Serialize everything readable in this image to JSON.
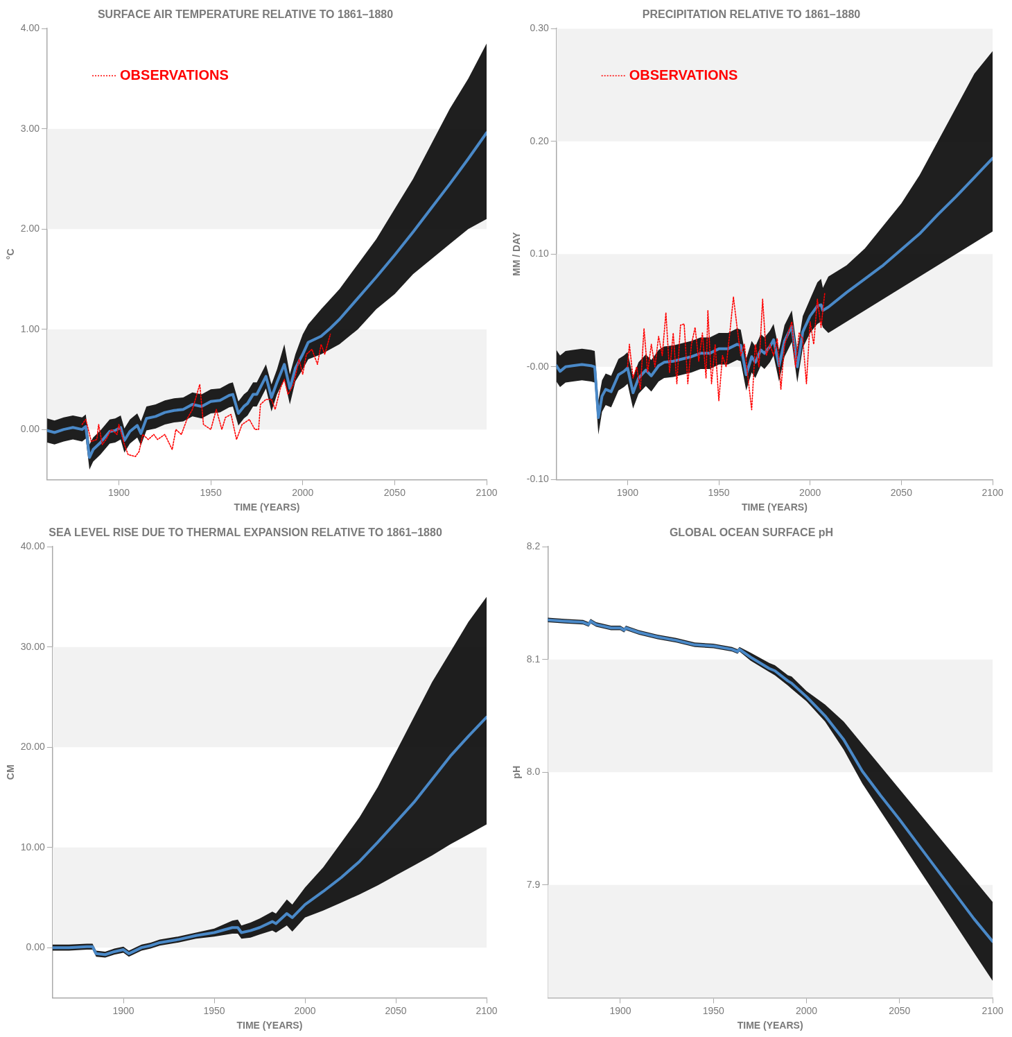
{
  "chart_data": [
    {
      "type": "line",
      "title": "SURFACE AIR TEMPERATURE RELATIVE TO 1861–1880",
      "xlabel": "TIME (YEARS)",
      "ylabel": "°C",
      "legend": "top left",
      "xlim": [
        1861,
        2100
      ],
      "xticks": [
        1900,
        1950,
        2000,
        2050,
        2100
      ],
      "ylim": [
        -0.5,
        4.0
      ],
      "yticks": [
        {
          "value": 0,
          "label": "0.00"
        },
        {
          "value": 1,
          "label": "1.00"
        },
        {
          "value": 2,
          "label": "2.00"
        },
        {
          "value": 3,
          "label": "3.00"
        },
        {
          "value": 4,
          "label": "4.00"
        }
      ],
      "bands": [
        {
          "axis": "y",
          "from": 0,
          "to": 1,
          "color": "#f2f2f2"
        },
        {
          "axis": "y",
          "from": 2,
          "to": 3,
          "color": "#f2f2f2"
        }
      ],
      "x": [
        1861,
        1865,
        1870,
        1875,
        1880,
        1882,
        1884,
        1886,
        1890,
        1895,
        1898,
        1901,
        1903,
        1906,
        1910,
        1912,
        1915,
        1920,
        1925,
        1930,
        1935,
        1940,
        1945,
        1950,
        1955,
        1960,
        1962,
        1965,
        1968,
        1970,
        1973,
        1975,
        1980,
        1983,
        1986,
        1990,
        1993,
        1996,
        2000,
        2003,
        2010,
        2015,
        2020,
        2030,
        2040,
        2050,
        2060,
        2070,
        2080,
        2090,
        2100
      ],
      "series": [
        {
          "color": "#4a89c8",
          "values": [
            -0.01,
            -0.03,
            0.0,
            0.02,
            0.0,
            0.03,
            -0.28,
            -0.2,
            -0.13,
            -0.02,
            -0.01,
            0.02,
            -0.11,
            -0.02,
            0.04,
            -0.04,
            0.11,
            0.13,
            0.17,
            0.19,
            0.2,
            0.25,
            0.23,
            0.28,
            0.29,
            0.34,
            0.35,
            0.16,
            0.23,
            0.26,
            0.35,
            0.35,
            0.53,
            0.32,
            0.47,
            0.65,
            0.41,
            0.61,
            0.75,
            0.87,
            0.93,
            1.01,
            1.1,
            1.31,
            1.52,
            1.74,
            1.97,
            2.21,
            2.45,
            2.7,
            2.96
          ],
          "lower": [
            -0.13,
            -0.15,
            -0.12,
            -0.1,
            -0.12,
            -0.09,
            -0.4,
            -0.32,
            -0.25,
            -0.14,
            -0.13,
            -0.1,
            -0.23,
            -0.14,
            -0.08,
            -0.16,
            -0.01,
            0.01,
            0.05,
            0.07,
            0.08,
            0.13,
            0.11,
            0.16,
            0.17,
            0.22,
            0.23,
            0.04,
            0.11,
            0.14,
            0.23,
            0.23,
            0.41,
            0.18,
            0.35,
            0.5,
            0.25,
            0.48,
            0.6,
            0.7,
            0.75,
            0.8,
            0.85,
            1.0,
            1.2,
            1.35,
            1.55,
            1.7,
            1.85,
            2.0,
            2.1
          ],
          "upper": [
            0.11,
            0.09,
            0.12,
            0.14,
            0.12,
            0.15,
            -0.15,
            -0.08,
            -0.01,
            0.1,
            0.11,
            0.14,
            0.01,
            0.1,
            0.16,
            0.08,
            0.23,
            0.25,
            0.29,
            0.31,
            0.32,
            0.37,
            0.35,
            0.4,
            0.41,
            0.46,
            0.47,
            0.28,
            0.35,
            0.38,
            0.47,
            0.47,
            0.65,
            0.45,
            0.6,
            0.85,
            0.55,
            0.75,
            0.95,
            1.05,
            1.2,
            1.3,
            1.4,
            1.65,
            1.9,
            2.2,
            2.5,
            2.85,
            3.2,
            3.5,
            3.85
          ]
        },
        {
          "name": "OBSERVATIONS",
          "color": "#ff0000",
          "line_style": "dotted",
          "x": [
            1880,
            1882,
            1885,
            1888,
            1889,
            1891,
            1893,
            1896,
            1899,
            1900,
            1903,
            1905,
            1909,
            1911,
            1913,
            1916,
            1919,
            1921,
            1925,
            1929,
            1931,
            1934,
            1937,
            1940,
            1944,
            1946,
            1950,
            1953,
            1956,
            1958,
            1961,
            1964,
            1967,
            1971,
            1974,
            1976,
            1977,
            1980,
            1983,
            1985,
            1988,
            1990,
            1992,
            1995,
            1998,
            2000,
            2002,
            2005,
            2008,
            2010,
            2012,
            2015
          ],
          "values": [
            0.05,
            0.1,
            -0.12,
            -0.1,
            0.05,
            -0.15,
            -0.1,
            0.0,
            -0.05,
            0.05,
            -0.15,
            -0.25,
            -0.27,
            -0.22,
            -0.05,
            -0.1,
            -0.05,
            -0.1,
            -0.05,
            -0.2,
            0.0,
            -0.05,
            0.1,
            0.2,
            0.45,
            0.05,
            0.0,
            0.2,
            0.0,
            0.12,
            0.15,
            -0.1,
            0.05,
            0.1,
            0.0,
            0.0,
            0.25,
            0.3,
            0.3,
            0.2,
            0.42,
            0.5,
            0.35,
            0.45,
            0.7,
            0.55,
            0.75,
            0.8,
            0.65,
            0.85,
            0.75,
            0.95
          ]
        }
      ]
    },
    {
      "type": "line",
      "title": "PRECIPITATION RELATIVE TO 1861–1880",
      "xlabel": "TIME (YEARS)",
      "ylabel": "MM / DAY",
      "legend": "top left",
      "xlim": [
        1861,
        2100
      ],
      "xticks": [
        1900,
        1950,
        2000,
        2050,
        2100
      ],
      "ylim": [
        -0.1,
        0.3
      ],
      "yticks": [
        {
          "value": -0.1,
          "label": "-0.10"
        },
        {
          "value": 0,
          "label": "-0.00"
        },
        {
          "value": 0.1,
          "label": "0.10"
        },
        {
          "value": 0.2,
          "label": "0.20"
        },
        {
          "value": 0.3,
          "label": "0.30"
        }
      ],
      "bands": [
        {
          "axis": "y",
          "from": 0,
          "to": 0.1,
          "color": "#f2f2f2"
        },
        {
          "axis": "y",
          "from": 0.2,
          "to": 0.3,
          "color": "#f2f2f2"
        }
      ],
      "x": [
        1861,
        1863,
        1866,
        1870,
        1875,
        1880,
        1882,
        1884,
        1886,
        1888,
        1891,
        1895,
        1898,
        1900,
        1903,
        1906,
        1910,
        1913,
        1917,
        1920,
        1925,
        1930,
        1935,
        1940,
        1945,
        1950,
        1955,
        1960,
        1962,
        1965,
        1968,
        1970,
        1973,
        1975,
        1978,
        1980,
        1983,
        1986,
        1990,
        1993,
        1996,
        2000,
        2004,
        2006,
        2007,
        2010,
        2020,
        2030,
        2040,
        2050,
        2060,
        2070,
        2080,
        2090,
        2100
      ],
      "series": [
        {
          "color": "#4a89c8",
          "values": [
            0.001,
            -0.004,
            0.0,
            0.001,
            0.002,
            0.001,
            0.0,
            -0.045,
            -0.026,
            -0.02,
            -0.022,
            -0.007,
            -0.004,
            -0.001,
            -0.023,
            -0.01,
            -0.003,
            -0.008,
            0.001,
            0.004,
            0.005,
            0.007,
            0.009,
            0.012,
            0.012,
            0.016,
            0.016,
            0.02,
            0.019,
            -0.007,
            0.009,
            0.004,
            0.015,
            0.012,
            0.018,
            0.024,
            0.001,
            0.023,
            0.036,
            0.0,
            0.031,
            0.045,
            0.054,
            0.055,
            0.05,
            0.053,
            0.066,
            0.078,
            0.09,
            0.104,
            0.118,
            0.135,
            0.151,
            0.168,
            0.185
          ],
          "lower": [
            -0.013,
            -0.018,
            -0.014,
            -0.013,
            -0.012,
            -0.013,
            -0.014,
            -0.06,
            -0.04,
            -0.034,
            -0.036,
            -0.021,
            -0.018,
            -0.015,
            -0.037,
            -0.024,
            -0.017,
            -0.022,
            -0.013,
            -0.01,
            -0.009,
            -0.007,
            -0.005,
            -0.002,
            -0.002,
            0.002,
            0.002,
            0.006,
            0.005,
            -0.021,
            -0.005,
            -0.01,
            0.001,
            -0.002,
            0.004,
            0.01,
            -0.013,
            0.009,
            0.022,
            -0.014,
            0.017,
            0.03,
            0.038,
            0.04,
            0.035,
            0.03,
            0.04,
            0.05,
            0.06,
            0.07,
            0.08,
            0.09,
            0.1,
            0.11,
            0.12
          ],
          "upper": [
            0.015,
            0.01,
            0.014,
            0.015,
            0.016,
            0.015,
            0.014,
            -0.03,
            -0.012,
            -0.006,
            -0.008,
            0.007,
            0.01,
            0.013,
            -0.009,
            0.004,
            0.011,
            0.006,
            0.015,
            0.018,
            0.019,
            0.021,
            0.023,
            0.026,
            0.026,
            0.03,
            0.03,
            0.034,
            0.033,
            0.007,
            0.023,
            0.018,
            0.029,
            0.026,
            0.032,
            0.038,
            0.015,
            0.037,
            0.05,
            0.014,
            0.045,
            0.06,
            0.075,
            0.078,
            0.07,
            0.08,
            0.09,
            0.105,
            0.125,
            0.145,
            0.17,
            0.2,
            0.23,
            0.26,
            0.28
          ]
        },
        {
          "name": "OBSERVATIONS",
          "color": "#ff0000",
          "line_style": "dotted",
          "x": [
            1900,
            1901,
            1903,
            1905,
            1907,
            1909,
            1911,
            1913,
            1915,
            1917,
            1919,
            1921,
            1923,
            1925,
            1927,
            1929,
            1931,
            1933,
            1935,
            1937,
            1939,
            1941,
            1943,
            1944,
            1946,
            1948,
            1950,
            1952,
            1954,
            1956,
            1958,
            1960,
            1962,
            1964,
            1966,
            1968,
            1970,
            1972,
            1974,
            1976,
            1978,
            1980,
            1982,
            1984,
            1986,
            1988,
            1990,
            1992,
            1994,
            1996,
            1998,
            2000,
            2002,
            2004,
            2006,
            2008
          ],
          "values": [
            0.0,
            0.02,
            -0.01,
            0.0,
            -0.02,
            0.034,
            -0.005,
            0.02,
            0.0,
            0.027,
            0.01,
            0.048,
            -0.005,
            0.03,
            -0.015,
            0.037,
            0.038,
            -0.015,
            0.02,
            0.035,
            0.005,
            0.03,
            -0.01,
            0.05,
            -0.015,
            0.02,
            -0.03,
            0.01,
            0.0,
            0.03,
            0.062,
            0.035,
            0.01,
            0.02,
            -0.01,
            -0.038,
            0.02,
            0.0,
            0.06,
            0.01,
            0.02,
            0.01,
            0.025,
            -0.02,
            0.02,
            0.03,
            0.04,
            0.0,
            0.03,
            0.025,
            -0.015,
            0.04,
            0.02,
            0.06,
            0.035,
            0.065
          ]
        }
      ]
    },
    {
      "type": "line",
      "title": "SEA LEVEL RISE DUE TO THERMAL EXPANSION RELATIVE TO 1861–1880",
      "xlabel": "TIME (YEARS)",
      "ylabel": "CM",
      "xlim": [
        1861,
        2100
      ],
      "xticks": [
        1900,
        1950,
        2000,
        2050,
        2100
      ],
      "ylim": [
        -5,
        40
      ],
      "yticks": [
        {
          "value": 0,
          "label": "0.00"
        },
        {
          "value": 10,
          "label": "10.00"
        },
        {
          "value": 20,
          "label": "20.00"
        },
        {
          "value": 30,
          "label": "30.00"
        },
        {
          "value": 40,
          "label": "40.00"
        }
      ],
      "bands": [
        {
          "axis": "y",
          "from": 0,
          "to": 10,
          "color": "#f2f2f2"
        },
        {
          "axis": "y",
          "from": 20,
          "to": 30,
          "color": "#f2f2f2"
        }
      ],
      "x": [
        1861,
        1870,
        1880,
        1883,
        1885,
        1890,
        1895,
        1900,
        1903,
        1910,
        1915,
        1920,
        1930,
        1940,
        1950,
        1960,
        1963,
        1965,
        1970,
        1975,
        1982,
        1984,
        1990,
        1993,
        2000,
        2010,
        2020,
        2030,
        2040,
        2050,
        2060,
        2070,
        2080,
        2090,
        2100
      ],
      "series": [
        {
          "color": "#4a89c8",
          "values": [
            0,
            0,
            0.1,
            0.1,
            -0.6,
            -0.7,
            -0.4,
            -0.2,
            -0.6,
            0,
            0.2,
            0.5,
            0.8,
            1.2,
            1.5,
            2.0,
            2.0,
            1.5,
            1.7,
            2.0,
            2.6,
            2.4,
            3.4,
            3.0,
            4.3,
            5.6,
            7.0,
            8.6,
            10.5,
            12.5,
            14.5,
            16.8,
            19.1,
            21.1,
            23.0
          ],
          "lower": [
            -0.3,
            -0.3,
            -0.2,
            -0.2,
            -0.9,
            -1.0,
            -0.7,
            -0.5,
            -0.9,
            -0.3,
            -0.1,
            0.2,
            0.5,
            0.9,
            1.1,
            1.4,
            1.4,
            0.9,
            1.0,
            1.3,
            1.7,
            1.5,
            2.2,
            1.6,
            3.0,
            3.7,
            4.5,
            5.3,
            6.2,
            7.2,
            8.2,
            9.2,
            10.3,
            11.3,
            12.3
          ],
          "upper": [
            0.3,
            0.3,
            0.4,
            0.4,
            -0.3,
            -0.4,
            -0.1,
            0.1,
            -0.3,
            0.3,
            0.5,
            0.8,
            1.1,
            1.5,
            1.9,
            2.7,
            2.8,
            2.2,
            2.5,
            2.9,
            3.6,
            3.4,
            4.8,
            4.3,
            6.0,
            8.0,
            10.5,
            13.0,
            16.0,
            19.5,
            23.0,
            26.5,
            29.5,
            32.5,
            35.0
          ]
        }
      ]
    },
    {
      "type": "line",
      "title": "GLOBAL OCEAN SURFACE pH",
      "xlabel": "TIME (YEARS)",
      "ylabel": "pH",
      "xlim": [
        1861,
        2100
      ],
      "xticks": [
        1900,
        1950,
        2000,
        2050,
        2100
      ],
      "ylim": [
        7.8,
        8.2
      ],
      "yticks": [
        {
          "value": 7.9,
          "label": "7.9"
        },
        {
          "value": 8.0,
          "label": "8.0"
        },
        {
          "value": 8.1,
          "label": "8.1"
        },
        {
          "value": 8.2,
          "label": "8.2"
        }
      ],
      "bands": [
        {
          "axis": "y",
          "from": 7.8,
          "to": 7.9,
          "color": "#f2f2f2"
        },
        {
          "axis": "y",
          "from": 8.0,
          "to": 8.1,
          "color": "#f2f2f2"
        }
      ],
      "x": [
        1861,
        1870,
        1880,
        1883,
        1884,
        1887,
        1895,
        1900,
        1902,
        1903,
        1910,
        1920,
        1930,
        1940,
        1950,
        1960,
        1963,
        1964,
        1970,
        1980,
        1983,
        1990,
        1992,
        2000,
        2010,
        2020,
        2030,
        2040,
        2050,
        2060,
        2070,
        2080,
        2090,
        2100
      ],
      "series": [
        {
          "color": "#4a89c8",
          "values": [
            8.135,
            8.134,
            8.133,
            8.131,
            8.134,
            8.131,
            8.128,
            8.128,
            8.126,
            8.128,
            8.124,
            8.12,
            8.117,
            8.113,
            8.112,
            8.109,
            8.107,
            8.109,
            8.102,
            8.092,
            8.09,
            8.081,
            8.079,
            8.067,
            8.05,
            8.029,
            8.001,
            7.979,
            7.958,
            7.936,
            7.914,
            7.892,
            7.87,
            7.85
          ],
          "lower": [
            8.133,
            8.132,
            8.131,
            8.129,
            8.132,
            8.129,
            8.126,
            8.126,
            8.124,
            8.126,
            8.122,
            8.118,
            8.115,
            8.111,
            8.11,
            8.107,
            8.105,
            8.107,
            8.099,
            8.089,
            8.086,
            8.077,
            8.074,
            8.063,
            8.045,
            8.02,
            7.99,
            7.965,
            7.94,
            7.915,
            7.89,
            7.865,
            7.84,
            7.815
          ],
          "upper": [
            8.137,
            8.136,
            8.135,
            8.133,
            8.136,
            8.133,
            8.13,
            8.13,
            8.128,
            8.13,
            8.126,
            8.122,
            8.119,
            8.115,
            8.114,
            8.111,
            8.109,
            8.111,
            8.106,
            8.097,
            8.095,
            8.086,
            8.085,
            8.072,
            8.06,
            8.045,
            8.025,
            8.005,
            7.985,
            7.965,
            7.945,
            7.925,
            7.905,
            7.885
          ]
        }
      ]
    }
  ]
}
